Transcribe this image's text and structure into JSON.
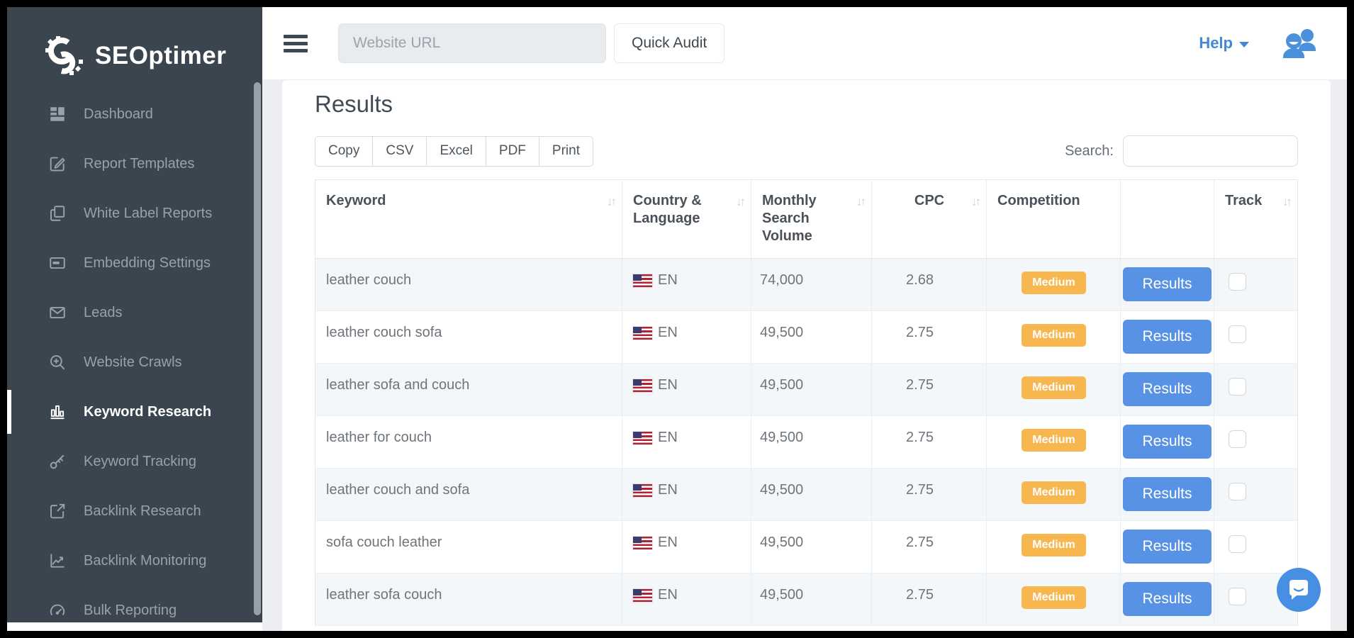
{
  "brand": {
    "name": "SEOptimer"
  },
  "sidebar": {
    "items": [
      {
        "id": "dashboard",
        "label": "Dashboard",
        "icon": "dashboard-icon",
        "active": false
      },
      {
        "id": "report-templates",
        "label": "Report Templates",
        "icon": "edit-icon",
        "active": false
      },
      {
        "id": "white-label-reports",
        "label": "White Label Reports",
        "icon": "pages-icon",
        "active": false
      },
      {
        "id": "embedding-settings",
        "label": "Embedding Settings",
        "icon": "embed-card-icon",
        "active": false
      },
      {
        "id": "leads",
        "label": "Leads",
        "icon": "envelope-icon",
        "active": false
      },
      {
        "id": "website-crawls",
        "label": "Website Crawls",
        "icon": "search-plus-icon",
        "active": false
      },
      {
        "id": "keyword-research",
        "label": "Keyword Research",
        "icon": "bar-chart-icon",
        "active": true
      },
      {
        "id": "keyword-tracking",
        "label": "Keyword Tracking",
        "icon": "key-icon",
        "active": false
      },
      {
        "id": "backlink-research",
        "label": "Backlink Research",
        "icon": "external-link-icon",
        "active": false
      },
      {
        "id": "backlink-monitoring",
        "label": "Backlink Monitoring",
        "icon": "line-chart-icon",
        "active": false
      },
      {
        "id": "bulk-reporting",
        "label": "Bulk Reporting",
        "icon": "gauge-icon",
        "active": false
      }
    ]
  },
  "topbar": {
    "url_placeholder": "Website URL",
    "quick_audit_label": "Quick Audit",
    "help_label": "Help"
  },
  "results": {
    "title": "Results",
    "export_buttons": [
      "Copy",
      "CSV",
      "Excel",
      "PDF",
      "Print"
    ],
    "search_label": "Search:",
    "search_value": ""
  },
  "table": {
    "columns": [
      {
        "label": "Keyword",
        "sortable": true,
        "align": "left"
      },
      {
        "label": "Country & Language",
        "sortable": true,
        "align": "left"
      },
      {
        "label": "Monthly Search Volume",
        "sortable": true,
        "align": "left"
      },
      {
        "label": "CPC",
        "sortable": true,
        "align": "center"
      },
      {
        "label": "Competition",
        "sortable": false,
        "align": "left"
      },
      {
        "label": "",
        "sortable": false,
        "align": "left"
      },
      {
        "label": "Track",
        "sortable": true,
        "align": "left"
      }
    ],
    "rows": [
      {
        "keyword": "leather couch",
        "country_flag": "us-flag",
        "language": "EN",
        "monthly_search_volume": "74,000",
        "cpc": "2.68",
        "competition": "Medium",
        "action_label": "Results",
        "tracked": false
      },
      {
        "keyword": "leather couch sofa",
        "country_flag": "us-flag",
        "language": "EN",
        "monthly_search_volume": "49,500",
        "cpc": "2.75",
        "competition": "Medium",
        "action_label": "Results",
        "tracked": false
      },
      {
        "keyword": "leather sofa and couch",
        "country_flag": "us-flag",
        "language": "EN",
        "monthly_search_volume": "49,500",
        "cpc": "2.75",
        "competition": "Medium",
        "action_label": "Results",
        "tracked": false
      },
      {
        "keyword": "leather for couch",
        "country_flag": "us-flag",
        "language": "EN",
        "monthly_search_volume": "49,500",
        "cpc": "2.75",
        "competition": "Medium",
        "action_label": "Results",
        "tracked": false
      },
      {
        "keyword": "leather couch and sofa",
        "country_flag": "us-flag",
        "language": "EN",
        "monthly_search_volume": "49,500",
        "cpc": "2.75",
        "competition": "Medium",
        "action_label": "Results",
        "tracked": false
      },
      {
        "keyword": "sofa couch leather",
        "country_flag": "us-flag",
        "language": "EN",
        "monthly_search_volume": "49,500",
        "cpc": "2.75",
        "competition": "Medium",
        "action_label": "Results",
        "tracked": false
      },
      {
        "keyword": "leather sofa couch",
        "country_flag": "us-flag",
        "language": "EN",
        "monthly_search_volume": "49,500",
        "cpc": "2.75",
        "competition": "Medium",
        "action_label": "Results",
        "tracked": false
      }
    ]
  },
  "colors": {
    "sidebar_bg": "#3a4550",
    "accent_blue": "#5892e4",
    "badge_medium": "#f8b64e",
    "help_link": "#4288d6",
    "chat_widget": "#478fe3"
  }
}
